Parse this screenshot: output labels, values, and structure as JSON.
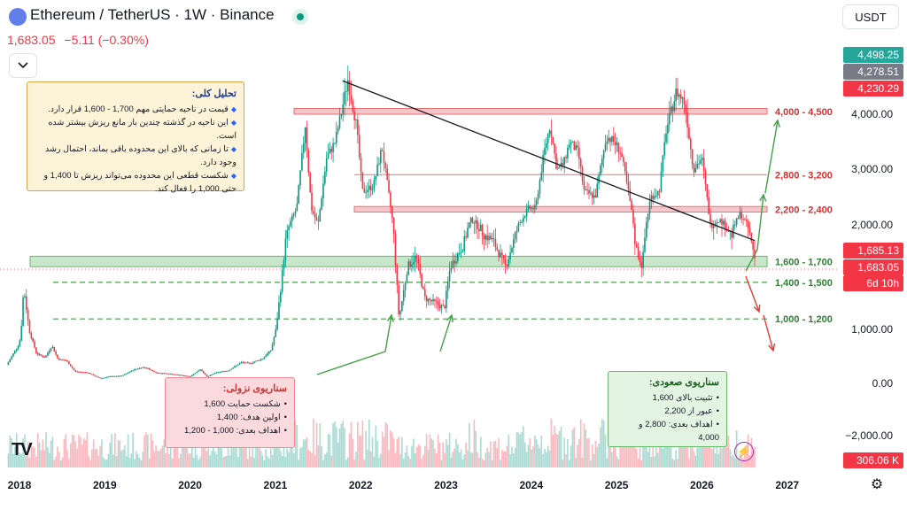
{
  "header": {
    "title": "Ethereum / TetherUS · 1W · Binance",
    "price": "1,683.05",
    "change": "−5.11 (−0.30%)",
    "currency_button": "USDT"
  },
  "colors": {
    "up": "#089981",
    "down": "#f23645",
    "resistance_fill": "#f7c6ca",
    "support_fill": "#c8e6c9",
    "zone_label_red": "#d32f2f",
    "zone_label_green": "#2e7d32"
  },
  "notes": {
    "analysis": {
      "title": "تحلیل کلی:",
      "items": [
        "قیمت در ناحیه حمایتی مهم 1,700 - 1,600 قرار دارد.",
        "این ناحیه در گذشته چندین بار مانع ریزش بیشتر شده است.",
        "تا زمانی که بالای این محدوده باقی بماند، احتمال رشد وجود دارد.",
        "شکست قطعی این محدوده می‌تواند ریزش تا 1,400 و حتی 1,000 را فعال کند."
      ]
    },
    "bear": {
      "title": "سناریوی نزولی:",
      "items": [
        "شکست حمایت 1,600",
        "اولین هدف: 1,400",
        "اهداف بعدی: 1,000 - 1,200"
      ]
    },
    "bull": {
      "title": "سناریوی صعودی:",
      "items": [
        "تثبیت بالای 1,600",
        "عبور از 2,200",
        "اهداف بعدی: 2,800 و 4,000"
      ]
    }
  },
  "chart_data": {
    "type": "candlestick",
    "title": "Ethereum / TetherUS · 1W · Binance",
    "interval": "1W",
    "price_axis_ticks": [
      "4,000.00",
      "3,000.00",
      "2,000.00",
      "1,000.00",
      "0.00",
      "−2,000.00"
    ],
    "time_axis_ticks": [
      "2018",
      "2019",
      "2020",
      "2021",
      "2022",
      "2023",
      "2024",
      "2025",
      "2026",
      "2027"
    ],
    "price_path": [
      [
        2017.85,
        340
      ],
      [
        2018.0,
        750
      ],
      [
        2018.05,
        1400
      ],
      [
        2018.12,
        950
      ],
      [
        2018.2,
        550
      ],
      [
        2018.3,
        480
      ],
      [
        2018.38,
        700
      ],
      [
        2018.45,
        450
      ],
      [
        2018.55,
        420
      ],
      [
        2018.65,
        220
      ],
      [
        2018.8,
        200
      ],
      [
        2018.95,
        90
      ],
      [
        2019.05,
        130
      ],
      [
        2019.2,
        140
      ],
      [
        2019.35,
        260
      ],
      [
        2019.45,
        300
      ],
      [
        2019.5,
        280
      ],
      [
        2019.6,
        200
      ],
      [
        2019.75,
        180
      ],
      [
        2019.9,
        150
      ],
      [
        2020.0,
        130
      ],
      [
        2020.12,
        260
      ],
      [
        2020.2,
        120
      ],
      [
        2020.3,
        200
      ],
      [
        2020.45,
        240
      ],
      [
        2020.6,
        390
      ],
      [
        2020.7,
        370
      ],
      [
        2020.85,
        460
      ],
      [
        2020.95,
        620
      ],
      [
        2021.05,
        1300
      ],
      [
        2021.12,
        1850
      ],
      [
        2021.25,
        2300
      ],
      [
        2021.35,
        3800
      ],
      [
        2021.42,
        2300
      ],
      [
        2021.5,
        2000
      ],
      [
        2021.6,
        3200
      ],
      [
        2021.7,
        3500
      ],
      [
        2021.85,
        4600
      ],
      [
        2021.95,
        3800
      ],
      [
        2022.02,
        2600
      ],
      [
        2022.15,
        2700
      ],
      [
        2022.25,
        3400
      ],
      [
        2022.38,
        2000
      ],
      [
        2022.45,
        1100
      ],
      [
        2022.55,
        1600
      ],
      [
        2022.65,
        1700
      ],
      [
        2022.75,
        1300
      ],
      [
        2022.88,
        1250
      ],
      [
        2022.98,
        1200
      ],
      [
        2023.05,
        1600
      ],
      [
        2023.2,
        1800
      ],
      [
        2023.3,
        2100
      ],
      [
        2023.45,
        1900
      ],
      [
        2023.55,
        1850
      ],
      [
        2023.7,
        1600
      ],
      [
        2023.85,
        2000
      ],
      [
        2023.97,
        2300
      ],
      [
        2024.05,
        2300
      ],
      [
        2024.15,
        3300
      ],
      [
        2024.22,
        3800
      ],
      [
        2024.3,
        3000
      ],
      [
        2024.38,
        3100
      ],
      [
        2024.45,
        3500
      ],
      [
        2024.55,
        3300
      ],
      [
        2024.62,
        2600
      ],
      [
        2024.75,
        2500
      ],
      [
        2024.88,
        3600
      ],
      [
        2024.97,
        3500
      ],
      [
        2025.05,
        3300
      ],
      [
        2025.15,
        2500
      ],
      [
        2025.22,
        1800
      ],
      [
        2025.3,
        1600
      ],
      [
        2025.4,
        2500
      ],
      [
        2025.5,
        2600
      ],
      [
        2025.58,
        3700
      ],
      [
        2025.7,
        4400
      ],
      [
        2025.8,
        4200
      ],
      [
        2025.9,
        3000
      ],
      [
        2026.0,
        3200
      ],
      [
        2026.1,
        2000
      ],
      [
        2026.2,
        2100
      ],
      [
        2026.35,
        1900
      ],
      [
        2026.45,
        2200
      ],
      [
        2026.55,
        1950
      ],
      [
        2026.62,
        1683.05
      ]
    ],
    "last_candle": {
      "open": 1688.16,
      "high": 1700,
      "low": 1650,
      "close": 1683.05
    },
    "zones": [
      {
        "label": "4,000 - 4,500",
        "low": 4000,
        "high": 4100,
        "kind": "resistance"
      },
      {
        "label": "2,800 - 3,200",
        "low": 2900,
        "high": 2900,
        "kind": "line-red"
      },
      {
        "label": "2,200 - 2,400",
        "low": 2230,
        "high": 2330,
        "kind": "resistance"
      },
      {
        "label": "1,600 - 1,700",
        "low": 1600,
        "high": 1700,
        "kind": "support"
      },
      {
        "label": "1,400 - 1,500",
        "low": 1450,
        "high": 1450,
        "kind": "dashed-green"
      },
      {
        "label": "1,000 - 1,200",
        "low": 1100,
        "high": 1100,
        "kind": "dashed-green"
      }
    ],
    "trendline": [
      [
        2021.85,
        4550
      ],
      [
        2026.62,
        1850
      ]
    ],
    "price_labels": [
      {
        "text": "4,498.25",
        "color": "#26a69a"
      },
      {
        "text": "4,278.51",
        "color": "#787b86"
      },
      {
        "text": "4,230.29",
        "color": "#f23645"
      },
      {
        "text": "1,685.13",
        "color": "#f23645"
      },
      {
        "text": "1,683.05",
        "color": "#f23645"
      },
      {
        "text": "6d 10h",
        "color": "#f23645"
      },
      {
        "text": "306.06 K",
        "color": "#f23645"
      }
    ],
    "grid": false,
    "legend": "none"
  }
}
